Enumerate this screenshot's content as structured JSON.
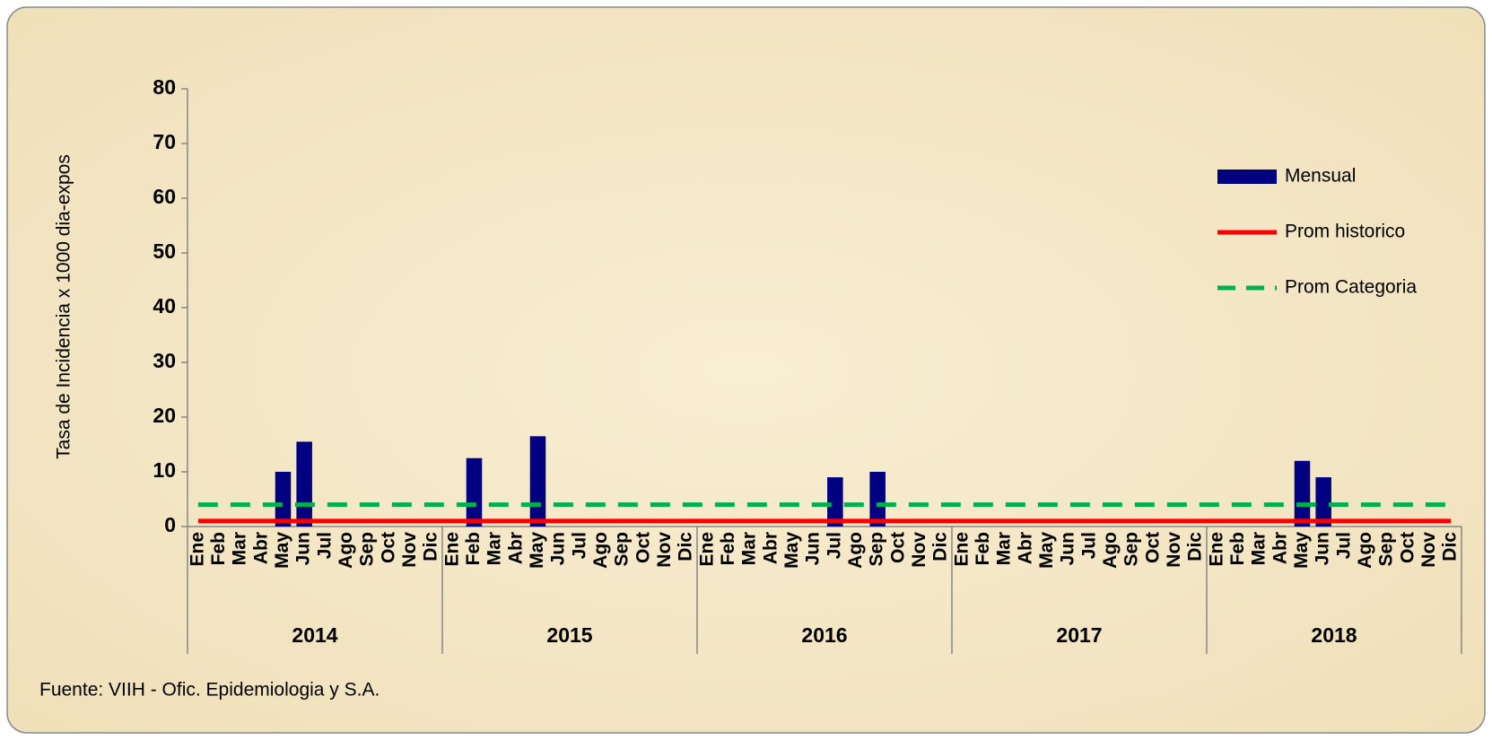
{
  "chart_data": {
    "type": "bar",
    "y_label": "Tasa de Incidencia x 1000 dia-expos",
    "source": "Fuente: VIIH - Ofic. Epidemiologia y S.A.",
    "categories": [
      "Ene",
      "Feb",
      "Mar",
      "Abr",
      "May",
      "Jun",
      "Jul",
      "Ago",
      "Sep",
      "Oct",
      "Nov",
      "Dic",
      "Ene",
      "Feb",
      "Mar",
      "Abr",
      "May",
      "Jun",
      "Jul",
      "Ago",
      "Sep",
      "Oct",
      "Nov",
      "Dic",
      "Ene",
      "Feb",
      "Mar",
      "Abr",
      "May",
      "Jun",
      "Jul",
      "Ago",
      "Sep",
      "Oct",
      "Nov",
      "Dic",
      "Ene",
      "Feb",
      "Mar",
      "Abr",
      "May",
      "Jun",
      "Jul",
      "Ago",
      "Sep",
      "Oct",
      "Nov",
      "Dic",
      "Ene",
      "Feb",
      "Mar",
      "Abr",
      "May",
      "Jun",
      "Jul",
      "Ago",
      "Sep",
      "Oct",
      "Nov",
      "Dic"
    ],
    "groups": [
      "2014",
      "2015",
      "2016",
      "2017",
      "2018"
    ],
    "series": [
      {
        "name": "Mensual",
        "type": "bar",
        "color": "#000080",
        "values": [
          0,
          0,
          0,
          0,
          10,
          15.5,
          0,
          0,
          0,
          0,
          0,
          0,
          0,
          12.5,
          0,
          0,
          16.5,
          0,
          0,
          0,
          0,
          0,
          0,
          0,
          0,
          0,
          0,
          0,
          0,
          0,
          9,
          0,
          10,
          0,
          0,
          0,
          0,
          0,
          0,
          0,
          0,
          0,
          0,
          0,
          0,
          0,
          0,
          0,
          0,
          0,
          0,
          0,
          12,
          9,
          0,
          0,
          0,
          0,
          0,
          0
        ]
      },
      {
        "name": "Prom historico",
        "type": "line",
        "color": "#ff0000",
        "dashed": false,
        "values": [
          1,
          1,
          1,
          1,
          1,
          1,
          1,
          1,
          1,
          1,
          1,
          1,
          1,
          1,
          1,
          1,
          1,
          1,
          1,
          1,
          1,
          1,
          1,
          1,
          1,
          1,
          1,
          1,
          1,
          1,
          1,
          1,
          1,
          1,
          1,
          1,
          1,
          1,
          1,
          1,
          1,
          1,
          1,
          1,
          1,
          1,
          1,
          1,
          1,
          1,
          1,
          1,
          1,
          1,
          1,
          1,
          1,
          1,
          1,
          1
        ]
      },
      {
        "name": "Prom Categoria",
        "type": "line",
        "color": "#00b050",
        "dashed": true,
        "values": [
          4,
          4,
          4,
          4,
          4,
          4,
          4,
          4,
          4,
          4,
          4,
          4,
          4,
          4,
          4,
          4,
          4,
          4,
          4,
          4,
          4,
          4,
          4,
          4,
          4,
          4,
          4,
          4,
          4,
          4,
          4,
          4,
          4,
          4,
          4,
          4,
          4,
          4,
          4,
          4,
          4,
          4,
          4,
          4,
          4,
          4,
          4,
          4,
          4,
          4,
          4,
          4,
          4,
          4,
          4,
          4,
          4,
          4,
          4,
          4
        ]
      }
    ],
    "ylim": [
      0,
      80
    ],
    "yticks": [
      0,
      10,
      20,
      30,
      40,
      50,
      60,
      70,
      80
    ],
    "legend": "right"
  }
}
